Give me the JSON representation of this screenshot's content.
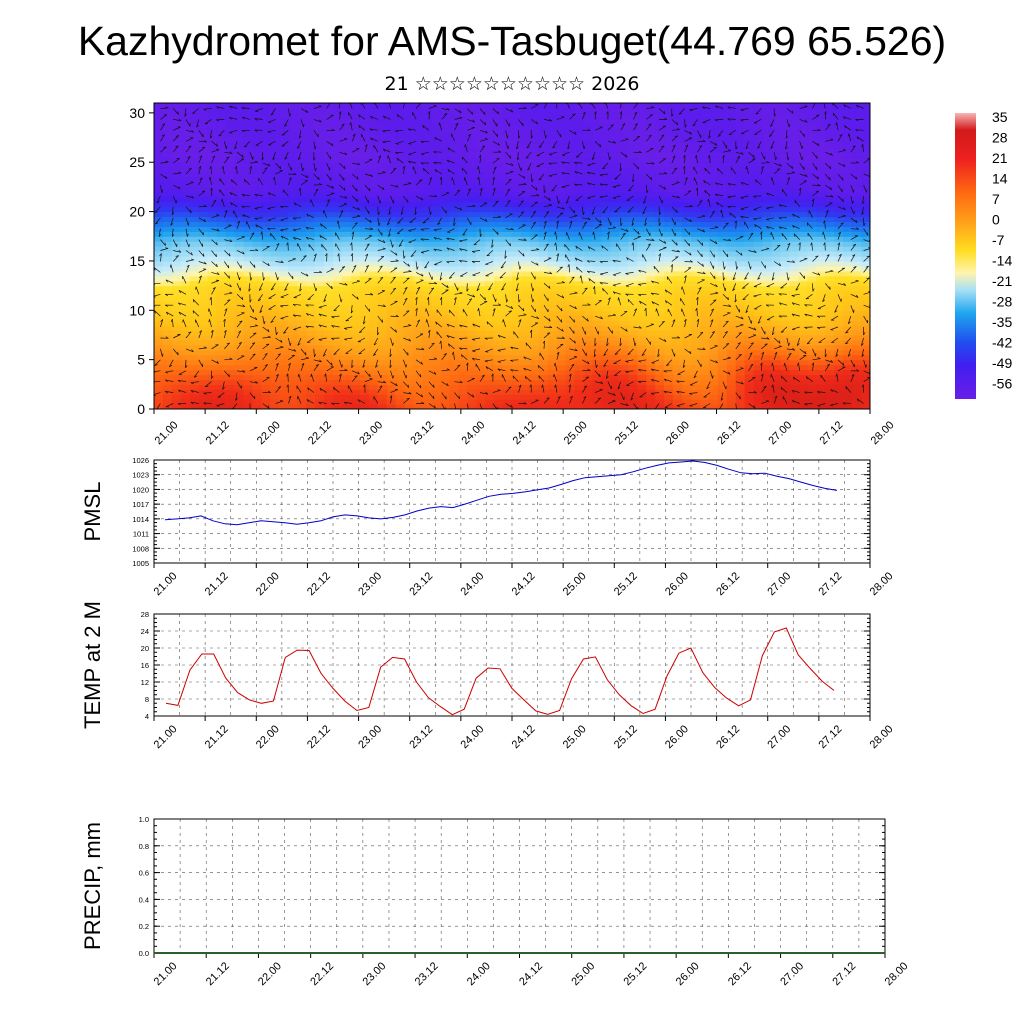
{
  "page": {
    "title": "Kazhydromet for AMS-Tasbuget(44.769 65.526)",
    "subtitle": "21 ☆☆☆☆☆☆☆☆☆☆ 2026"
  },
  "chart_data": [
    {
      "type": "heatmap",
      "name": "cross-section",
      "xticks": [
        "21.00",
        "21.12",
        "22.00",
        "22.12",
        "23.00",
        "23.12",
        "24.00",
        "24.12",
        "25.00",
        "25.12",
        "26.00",
        "26.12",
        "27.00",
        "27.12",
        "28.00"
      ],
      "yticks": [
        0,
        5,
        10,
        15,
        20,
        25,
        30
      ],
      "ylim": [
        0,
        31
      ],
      "colorbar": {
        "labels": [
          "35",
          "28",
          "21",
          "14",
          "7",
          "0",
          "-7",
          "-14",
          "-21",
          "-28",
          "-35",
          "-42",
          "-49",
          "-56"
        ],
        "range": [
          -63,
          38
        ]
      },
      "warm_spots": [
        {
          "x": 1.6,
          "y": 2,
          "t": 26
        },
        {
          "x": 7.8,
          "y": 2,
          "t": 24
        },
        {
          "x": 4.2,
          "y": 1.5,
          "t": 22
        },
        {
          "x": 9.0,
          "y": 2,
          "t": 24
        },
        {
          "x": 12.0,
          "y": 2.5,
          "t": 26
        },
        {
          "x": 13.7,
          "y": 3,
          "t": 31
        }
      ],
      "wind_vectors": true
    },
    {
      "type": "line",
      "ylabel": "PMSL",
      "ylim": [
        1005,
        1026
      ],
      "yticks": [
        1005,
        1008,
        1011,
        1014,
        1017,
        1020,
        1023,
        1026
      ],
      "xticks": [
        "21.00",
        "21.12",
        "22.00",
        "22.12",
        "23.00",
        "23.12",
        "24.00",
        "24.12",
        "25.00",
        "25.12",
        "26.00",
        "26.12",
        "27.00",
        "27.12",
        "28.00"
      ],
      "color": "#0000cc",
      "x": [
        0.0,
        0.5,
        1.0,
        1.5,
        2.0,
        2.5,
        3.0,
        3.5,
        4.0,
        4.5,
        5.0,
        5.5,
        6.0,
        6.5,
        7.0,
        7.5,
        8.0,
        8.5,
        9.0,
        9.5,
        10.0,
        10.5,
        11.0,
        11.5,
        12.0,
        12.5,
        13.0,
        13.5,
        14.0,
        14.5,
        15.0,
        15.5,
        16.0,
        16.5,
        17.0,
        17.5,
        18.0,
        18.5,
        19.0,
        19.5,
        20.0,
        20.5,
        21.0,
        21.5,
        22.0,
        22.5,
        23.0,
        23.5,
        24.0,
        24.5,
        25.0,
        25.5,
        26.0,
        26.5,
        27.0,
        27.5,
        28.0
      ],
      "values": [
        1013.8,
        1014.0,
        1014.2,
        1014.6,
        1013.6,
        1013.0,
        1012.8,
        1013.2,
        1013.6,
        1013.4,
        1013.2,
        1012.9,
        1013.2,
        1013.6,
        1014.4,
        1014.8,
        1014.6,
        1014.2,
        1014.0,
        1014.3,
        1014.8,
        1015.6,
        1016.2,
        1016.5,
        1016.3,
        1017.0,
        1017.8,
        1018.6,
        1019.0,
        1019.2,
        1019.5,
        1019.9,
        1020.3,
        1021.0,
        1021.8,
        1022.4,
        1022.6,
        1022.8,
        1023.0,
        1023.6,
        1024.3,
        1024.9,
        1025.4,
        1025.6,
        1025.8,
        1025.5,
        1024.9,
        1024.1,
        1023.4,
        1023.2,
        1023.3,
        1022.7,
        1022.2,
        1021.5,
        1020.8,
        1020.2,
        1019.8
      ]
    },
    {
      "type": "line",
      "ylabel": "TEMP at 2 M",
      "ylim": [
        4,
        28
      ],
      "yticks": [
        4,
        8,
        12,
        16,
        20,
        24,
        28
      ],
      "xticks": [
        "21.00",
        "21.12",
        "22.00",
        "22.12",
        "23.00",
        "23.12",
        "24.00",
        "24.12",
        "25.00",
        "25.12",
        "26.00",
        "26.12",
        "27.00",
        "27.12",
        "28.00"
      ],
      "color": "#cc0000",
      "x": [
        0,
        1,
        2,
        3,
        4,
        5,
        6,
        7,
        8,
        9,
        10,
        11,
        12,
        13,
        14,
        15,
        16,
        17,
        18,
        19,
        20,
        21,
        22,
        23,
        24,
        25,
        26,
        27,
        28,
        29,
        30,
        31,
        32,
        33,
        34,
        35,
        36,
        37,
        38,
        39,
        40,
        41,
        42,
        43,
        44,
        45,
        46,
        47,
        48,
        49,
        50,
        51,
        52,
        53,
        54,
        55,
        56
      ],
      "values": [
        7.0,
        6.5,
        14.8,
        18.6,
        18.6,
        13.0,
        9.5,
        7.8,
        7.0,
        7.5,
        17.8,
        19.5,
        19.4,
        14.0,
        10.5,
        7.5,
        5.3,
        6.0,
        15.5,
        17.8,
        17.4,
        12.0,
        8.3,
        6.2,
        4.3,
        5.6,
        12.9,
        15.3,
        15.1,
        10.5,
        7.8,
        5.2,
        4.4,
        5.3,
        12.8,
        17.4,
        17.9,
        12.5,
        9.0,
        6.4,
        4.6,
        5.6,
        13.4,
        18.8,
        20.0,
        14.2,
        10.7,
        8.2,
        6.4,
        7.8,
        18.2,
        23.8,
        24.7,
        18.4,
        15.2,
        12.2,
        10.0
      ]
    },
    {
      "type": "line",
      "ylabel": "PRECIP, mm",
      "ylim": [
        0,
        1.0
      ],
      "yticks": [
        0.0,
        0.2,
        0.4,
        0.6,
        0.8,
        1.0
      ],
      "xticks": [
        "21.00",
        "21.12",
        "22.00",
        "22.12",
        "23.00",
        "23.12",
        "24.00",
        "24.12",
        "25.00",
        "25.12",
        "26.00",
        "26.12",
        "27.00",
        "27.12",
        "28.00"
      ],
      "color": "#2e5d2e",
      "values_constant": 0.0
    }
  ]
}
